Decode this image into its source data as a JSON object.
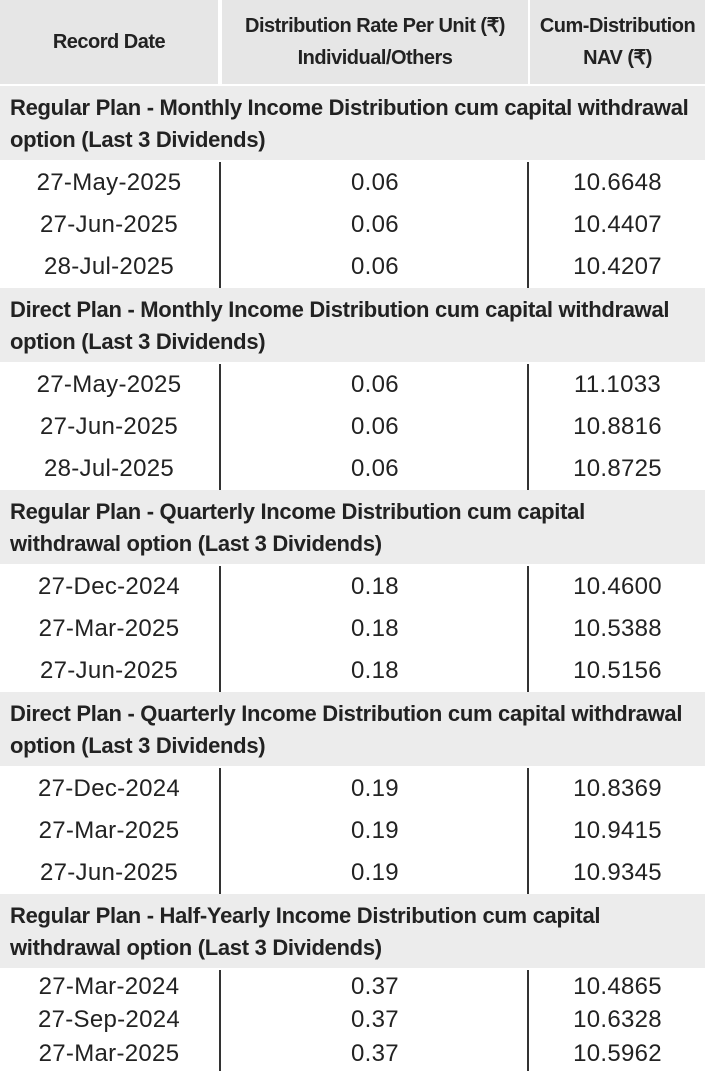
{
  "header": {
    "columns": [
      [
        "Record Date"
      ],
      [
        "Distribution Rate Per Unit (₹)",
        "Individual/Others"
      ],
      [
        "Cum-Distribution",
        "NAV (₹)"
      ]
    ]
  },
  "sections": [
    {
      "title": "Regular Plan - Monthly Income Distribution cum capital withdrawal option (Last 3 Dividends)",
      "rows": [
        [
          "27-May-2025",
          "0.06",
          "10.6648"
        ],
        [
          "27-Jun-2025",
          "0.06",
          "10.4407"
        ],
        [
          "28-Jul-2025",
          "0.06",
          "10.4207"
        ]
      ]
    },
    {
      "title": "Direct Plan - Monthly Income Distribution cum capital withdrawal option (Last 3 Dividends)",
      "rows": [
        [
          "27-May-2025",
          "0.06",
          "11.1033"
        ],
        [
          "27-Jun-2025",
          "0.06",
          "10.8816"
        ],
        [
          "28-Jul-2025",
          "0.06",
          "10.8725"
        ]
      ]
    },
    {
      "title": "Regular Plan - Quarterly Income Distribution cum capital withdrawal option (Last 3 Dividends)",
      "rows": [
        [
          "27-Dec-2024",
          "0.18",
          "10.4600"
        ],
        [
          "27-Mar-2025",
          "0.18",
          "10.5388"
        ],
        [
          "27-Jun-2025",
          "0.18",
          "10.5156"
        ]
      ]
    },
    {
      "title": "Direct Plan - Quarterly Income Distribution cum capital withdrawal option (Last 3 Dividends)",
      "rows": [
        [
          "27-Dec-2024",
          "0.19",
          "10.8369"
        ],
        [
          "27-Mar-2025",
          "0.19",
          "10.9415"
        ],
        [
          "27-Jun-2025",
          "0.19",
          "10.9345"
        ]
      ]
    },
    {
      "title": "Regular Plan - Half-Yearly Income Distribution cum capital withdrawal option (Last 3 Dividends)",
      "rows": [
        [
          "27-Mar-2024",
          "0.37",
          "10.4865"
        ],
        [
          "27-Sep-2024",
          "0.37",
          "10.6328"
        ],
        [
          "27-Mar-2025",
          "0.37",
          "10.5962"
        ]
      ]
    }
  ]
}
